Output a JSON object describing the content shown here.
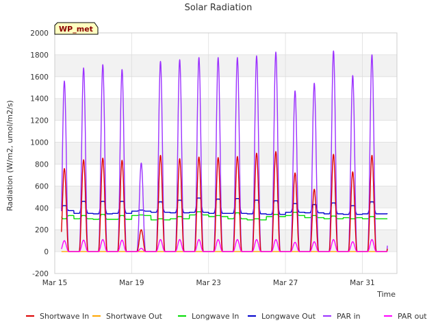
{
  "chart_data": {
    "type": "line",
    "title": "Solar Radiation",
    "xlabel": "Time",
    "ylabel": "Radiation (W/m2, umol/m2/s)",
    "site_label": "WP_met",
    "ylim": [
      -200,
      2000
    ],
    "xlim": [
      0,
      17.8
    ],
    "x_unit": "days since Mar 15",
    "y_ticks": [
      "-200",
      "0",
      "200",
      "400",
      "600",
      "800",
      "1000",
      "1200",
      "1400",
      "1600",
      "1800",
      "2000"
    ],
    "x_ticks": [
      {
        "label": "Mar 15",
        "x": 0
      },
      {
        "label": "Mar 19",
        "x": 4
      },
      {
        "label": "Mar 23",
        "x": 8
      },
      {
        "label": "Mar 27",
        "x": 12
      },
      {
        "label": "Mar 31",
        "x": 16
      }
    ],
    "grid": true,
    "background_bands": true,
    "legend_position": "bottom",
    "series": [
      {
        "name": "Shortwave In",
        "color": "#dd0000",
        "daily_peak": [
          760,
          840,
          855,
          835,
          200,
          880,
          850,
          865,
          860,
          870,
          900,
          915,
          720,
          570,
          890,
          730,
          880
        ]
      },
      {
        "name": "Shortwave Out",
        "color": "#ffa500",
        "daily_peak": [
          0,
          0,
          0,
          0,
          0,
          0,
          0,
          0,
          0,
          0,
          0,
          0,
          0,
          0,
          0,
          0,
          0
        ]
      },
      {
        "name": "Longwave In",
        "color": "#00dd00",
        "day_value": [
          300,
          330,
          340,
          330,
          335,
          300,
          320,
          365,
          330,
          355,
          300,
          340,
          360,
          330,
          325,
          300,
          320
        ],
        "night_value": [
          330,
          300,
          295,
          295,
          330,
          290,
          300,
          335,
          320,
          300,
          290,
          320,
          330,
          310,
          300,
          310,
          300
        ]
      },
      {
        "name": "Longwave Out",
        "color": "#0000cc",
        "day_value": [
          420,
          460,
          460,
          460,
          380,
          455,
          470,
          490,
          480,
          485,
          470,
          465,
          440,
          430,
          445,
          420,
          455
        ],
        "night_value": [
          375,
          350,
          345,
          350,
          370,
          360,
          355,
          360,
          350,
          350,
          345,
          340,
          360,
          355,
          345,
          340,
          345
        ]
      },
      {
        "name": "PAR in",
        "color": "#9b30ff",
        "daily_peak": [
          1560,
          1680,
          1710,
          1665,
          810,
          1740,
          1755,
          1775,
          1775,
          1775,
          1790,
          1825,
          1470,
          1540,
          1835,
          1610,
          1800
        ]
      },
      {
        "name": "PAR out",
        "color": "#ff00ff",
        "daily_peak": [
          100,
          105,
          110,
          105,
          30,
          110,
          110,
          110,
          110,
          110,
          110,
          110,
          85,
          90,
          110,
          90,
          110
        ]
      }
    ]
  }
}
